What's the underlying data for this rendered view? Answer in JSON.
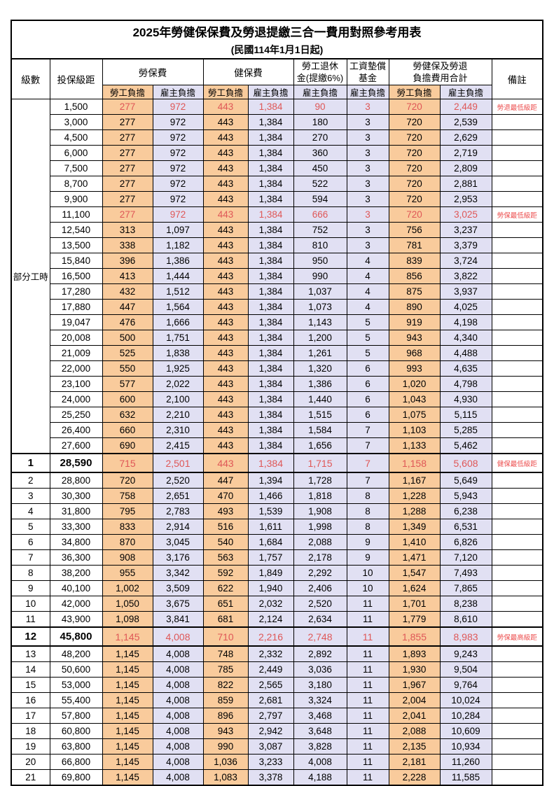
{
  "title": "2025年勞健保保費及勞退提繳三合一費用對照參考用表",
  "subtitle": "(民國114年1月1日起)",
  "header": {
    "level": "級數",
    "bracket": "投保級距",
    "labor_group": "勞保費",
    "health_group": "健保費",
    "pension_line1": "勞工退休",
    "pension_line2": "金(提繳6%)",
    "wage_fund_line1": "工資墊償",
    "wage_fund_line2": "基金",
    "total_line1": "勞健保及勞退",
    "total_line2": "負擔費用合計",
    "notes": "備註",
    "worker": "勞工負擔",
    "employer": "雇主負擔"
  },
  "colors": {
    "worker_bg": "#F9CB9C",
    "employer_bg": "#E1E0F3",
    "highlight_red": "#DF5757",
    "note_red": "#EC4D4D"
  },
  "section_label": "部分工時",
  "section_rowspan": 23,
  "rows": [
    {
      "level": null,
      "bracket": "1,500",
      "values": [
        "277",
        "972",
        "443",
        "1,384",
        "90",
        "3",
        "720",
        "2,449"
      ],
      "note": "勞退最低級距",
      "style": "red"
    },
    {
      "level": null,
      "bracket": "3,000",
      "values": [
        "277",
        "972",
        "443",
        "1,384",
        "180",
        "3",
        "720",
        "2,539"
      ],
      "note": "",
      "style": ""
    },
    {
      "level": null,
      "bracket": "4,500",
      "values": [
        "277",
        "972",
        "443",
        "1,384",
        "270",
        "3",
        "720",
        "2,629"
      ],
      "note": "",
      "style": ""
    },
    {
      "level": null,
      "bracket": "6,000",
      "values": [
        "277",
        "972",
        "443",
        "1,384",
        "360",
        "3",
        "720",
        "2,719"
      ],
      "note": "",
      "style": ""
    },
    {
      "level": null,
      "bracket": "7,500",
      "values": [
        "277",
        "972",
        "443",
        "1,384",
        "450",
        "3",
        "720",
        "2,809"
      ],
      "note": "",
      "style": ""
    },
    {
      "level": null,
      "bracket": "8,700",
      "values": [
        "277",
        "972",
        "443",
        "1,384",
        "522",
        "3",
        "720",
        "2,881"
      ],
      "note": "",
      "style": ""
    },
    {
      "level": null,
      "bracket": "9,900",
      "values": [
        "277",
        "972",
        "443",
        "1,384",
        "594",
        "3",
        "720",
        "2,953"
      ],
      "note": "",
      "style": ""
    },
    {
      "level": null,
      "bracket": "11,100",
      "values": [
        "277",
        "972",
        "443",
        "1,384",
        "666",
        "3",
        "720",
        "3,025"
      ],
      "note": "勞保最低級距",
      "style": "red"
    },
    {
      "level": null,
      "bracket": "12,540",
      "values": [
        "313",
        "1,097",
        "443",
        "1,384",
        "752",
        "3",
        "756",
        "3,237"
      ],
      "note": "",
      "style": ""
    },
    {
      "level": null,
      "bracket": "13,500",
      "values": [
        "338",
        "1,182",
        "443",
        "1,384",
        "810",
        "3",
        "781",
        "3,379"
      ],
      "note": "",
      "style": ""
    },
    {
      "level": null,
      "bracket": "15,840",
      "values": [
        "396",
        "1,386",
        "443",
        "1,384",
        "950",
        "4",
        "839",
        "3,724"
      ],
      "note": "",
      "style": ""
    },
    {
      "level": null,
      "bracket": "16,500",
      "values": [
        "413",
        "1,444",
        "443",
        "1,384",
        "990",
        "4",
        "856",
        "3,822"
      ],
      "note": "",
      "style": ""
    },
    {
      "level": null,
      "bracket": "17,280",
      "values": [
        "432",
        "1,512",
        "443",
        "1,384",
        "1,037",
        "4",
        "875",
        "3,937"
      ],
      "note": "",
      "style": ""
    },
    {
      "level": null,
      "bracket": "17,880",
      "values": [
        "447",
        "1,564",
        "443",
        "1,384",
        "1,073",
        "4",
        "890",
        "4,025"
      ],
      "note": "",
      "style": ""
    },
    {
      "level": null,
      "bracket": "19,047",
      "values": [
        "476",
        "1,666",
        "443",
        "1,384",
        "1,143",
        "5",
        "919",
        "4,198"
      ],
      "note": "",
      "style": ""
    },
    {
      "level": null,
      "bracket": "20,008",
      "values": [
        "500",
        "1,751",
        "443",
        "1,384",
        "1,200",
        "5",
        "943",
        "4,340"
      ],
      "note": "",
      "style": ""
    },
    {
      "level": null,
      "bracket": "21,009",
      "values": [
        "525",
        "1,838",
        "443",
        "1,384",
        "1,261",
        "5",
        "968",
        "4,488"
      ],
      "note": "",
      "style": ""
    },
    {
      "level": null,
      "bracket": "22,000",
      "values": [
        "550",
        "1,925",
        "443",
        "1,384",
        "1,320",
        "6",
        "993",
        "4,635"
      ],
      "note": "",
      "style": ""
    },
    {
      "level": null,
      "bracket": "23,100",
      "values": [
        "577",
        "2,022",
        "443",
        "1,384",
        "1,386",
        "6",
        "1,020",
        "4,798"
      ],
      "note": "",
      "style": ""
    },
    {
      "level": null,
      "bracket": "24,000",
      "values": [
        "600",
        "2,100",
        "443",
        "1,384",
        "1,440",
        "6",
        "1,043",
        "4,930"
      ],
      "note": "",
      "style": ""
    },
    {
      "level": null,
      "bracket": "25,250",
      "values": [
        "632",
        "2,210",
        "443",
        "1,384",
        "1,515",
        "6",
        "1,075",
        "5,115"
      ],
      "note": "",
      "style": ""
    },
    {
      "level": null,
      "bracket": "26,400",
      "values": [
        "660",
        "2,310",
        "443",
        "1,384",
        "1,584",
        "7",
        "1,103",
        "5,285"
      ],
      "note": "",
      "style": ""
    },
    {
      "level": null,
      "bracket": "27,600",
      "values": [
        "690",
        "2,415",
        "443",
        "1,384",
        "1,656",
        "7",
        "1,133",
        "5,462"
      ],
      "note": "",
      "style": ""
    },
    {
      "level": "1",
      "bracket": "28,590",
      "values": [
        "715",
        "2,501",
        "443",
        "1,384",
        "1,715",
        "7",
        "1,158",
        "5,608"
      ],
      "note": "健保最低級距",
      "style": "redbold"
    },
    {
      "level": "2",
      "bracket": "28,800",
      "values": [
        "720",
        "2,520",
        "447",
        "1,394",
        "1,728",
        "7",
        "1,167",
        "5,649"
      ],
      "note": "",
      "style": ""
    },
    {
      "level": "3",
      "bracket": "30,300",
      "values": [
        "758",
        "2,651",
        "470",
        "1,466",
        "1,818",
        "8",
        "1,228",
        "5,943"
      ],
      "note": "",
      "style": ""
    },
    {
      "level": "4",
      "bracket": "31,800",
      "values": [
        "795",
        "2,783",
        "493",
        "1,539",
        "1,908",
        "8",
        "1,288",
        "6,238"
      ],
      "note": "",
      "style": ""
    },
    {
      "level": "5",
      "bracket": "33,300",
      "values": [
        "833",
        "2,914",
        "516",
        "1,611",
        "1,998",
        "8",
        "1,349",
        "6,531"
      ],
      "note": "",
      "style": ""
    },
    {
      "level": "6",
      "bracket": "34,800",
      "values": [
        "870",
        "3,045",
        "540",
        "1,684",
        "2,088",
        "9",
        "1,410",
        "6,826"
      ],
      "note": "",
      "style": ""
    },
    {
      "level": "7",
      "bracket": "36,300",
      "values": [
        "908",
        "3,176",
        "563",
        "1,757",
        "2,178",
        "9",
        "1,471",
        "7,120"
      ],
      "note": "",
      "style": ""
    },
    {
      "level": "8",
      "bracket": "38,200",
      "values": [
        "955",
        "3,342",
        "592",
        "1,849",
        "2,292",
        "10",
        "1,547",
        "7,493"
      ],
      "note": "",
      "style": ""
    },
    {
      "level": "9",
      "bracket": "40,100",
      "values": [
        "1,002",
        "3,509",
        "622",
        "1,940",
        "2,406",
        "10",
        "1,624",
        "7,865"
      ],
      "note": "",
      "style": ""
    },
    {
      "level": "10",
      "bracket": "42,000",
      "values": [
        "1,050",
        "3,675",
        "651",
        "2,032",
        "2,520",
        "11",
        "1,701",
        "8,238"
      ],
      "note": "",
      "style": ""
    },
    {
      "level": "11",
      "bracket": "43,900",
      "values": [
        "1,098",
        "3,841",
        "681",
        "2,124",
        "2,634",
        "11",
        "1,779",
        "8,610"
      ],
      "note": "",
      "style": ""
    },
    {
      "level": "12",
      "bracket": "45,800",
      "values": [
        "1,145",
        "4,008",
        "710",
        "2,216",
        "2,748",
        "11",
        "1,855",
        "8,983"
      ],
      "note": "勞保最高級距",
      "style": "redbold"
    },
    {
      "level": "13",
      "bracket": "48,200",
      "values": [
        "1,145",
        "4,008",
        "748",
        "2,332",
        "2,892",
        "11",
        "1,893",
        "9,243"
      ],
      "note": "",
      "style": ""
    },
    {
      "level": "14",
      "bracket": "50,600",
      "values": [
        "1,145",
        "4,008",
        "785",
        "2,449",
        "3,036",
        "11",
        "1,930",
        "9,504"
      ],
      "note": "",
      "style": ""
    },
    {
      "level": "15",
      "bracket": "53,000",
      "values": [
        "1,145",
        "4,008",
        "822",
        "2,565",
        "3,180",
        "11",
        "1,967",
        "9,764"
      ],
      "note": "",
      "style": ""
    },
    {
      "level": "16",
      "bracket": "55,400",
      "values": [
        "1,145",
        "4,008",
        "859",
        "2,681",
        "3,324",
        "11",
        "2,004",
        "10,024"
      ],
      "note": "",
      "style": ""
    },
    {
      "level": "17",
      "bracket": "57,800",
      "values": [
        "1,145",
        "4,008",
        "896",
        "2,797",
        "3,468",
        "11",
        "2,041",
        "10,284"
      ],
      "note": "",
      "style": ""
    },
    {
      "level": "18",
      "bracket": "60,800",
      "values": [
        "1,145",
        "4,008",
        "943",
        "2,942",
        "3,648",
        "11",
        "2,088",
        "10,609"
      ],
      "note": "",
      "style": ""
    },
    {
      "level": "19",
      "bracket": "63,800",
      "values": [
        "1,145",
        "4,008",
        "990",
        "3,087",
        "3,828",
        "11",
        "2,135",
        "10,934"
      ],
      "note": "",
      "style": ""
    },
    {
      "level": "20",
      "bracket": "66,800",
      "values": [
        "1,145",
        "4,008",
        "1,036",
        "3,233",
        "4,008",
        "11",
        "2,181",
        "11,260"
      ],
      "note": "",
      "style": ""
    },
    {
      "level": "21",
      "bracket": "69,800",
      "values": [
        "1,145",
        "4,008",
        "1,083",
        "3,378",
        "4,188",
        "11",
        "2,228",
        "11,585"
      ],
      "note": "",
      "style": ""
    }
  ]
}
